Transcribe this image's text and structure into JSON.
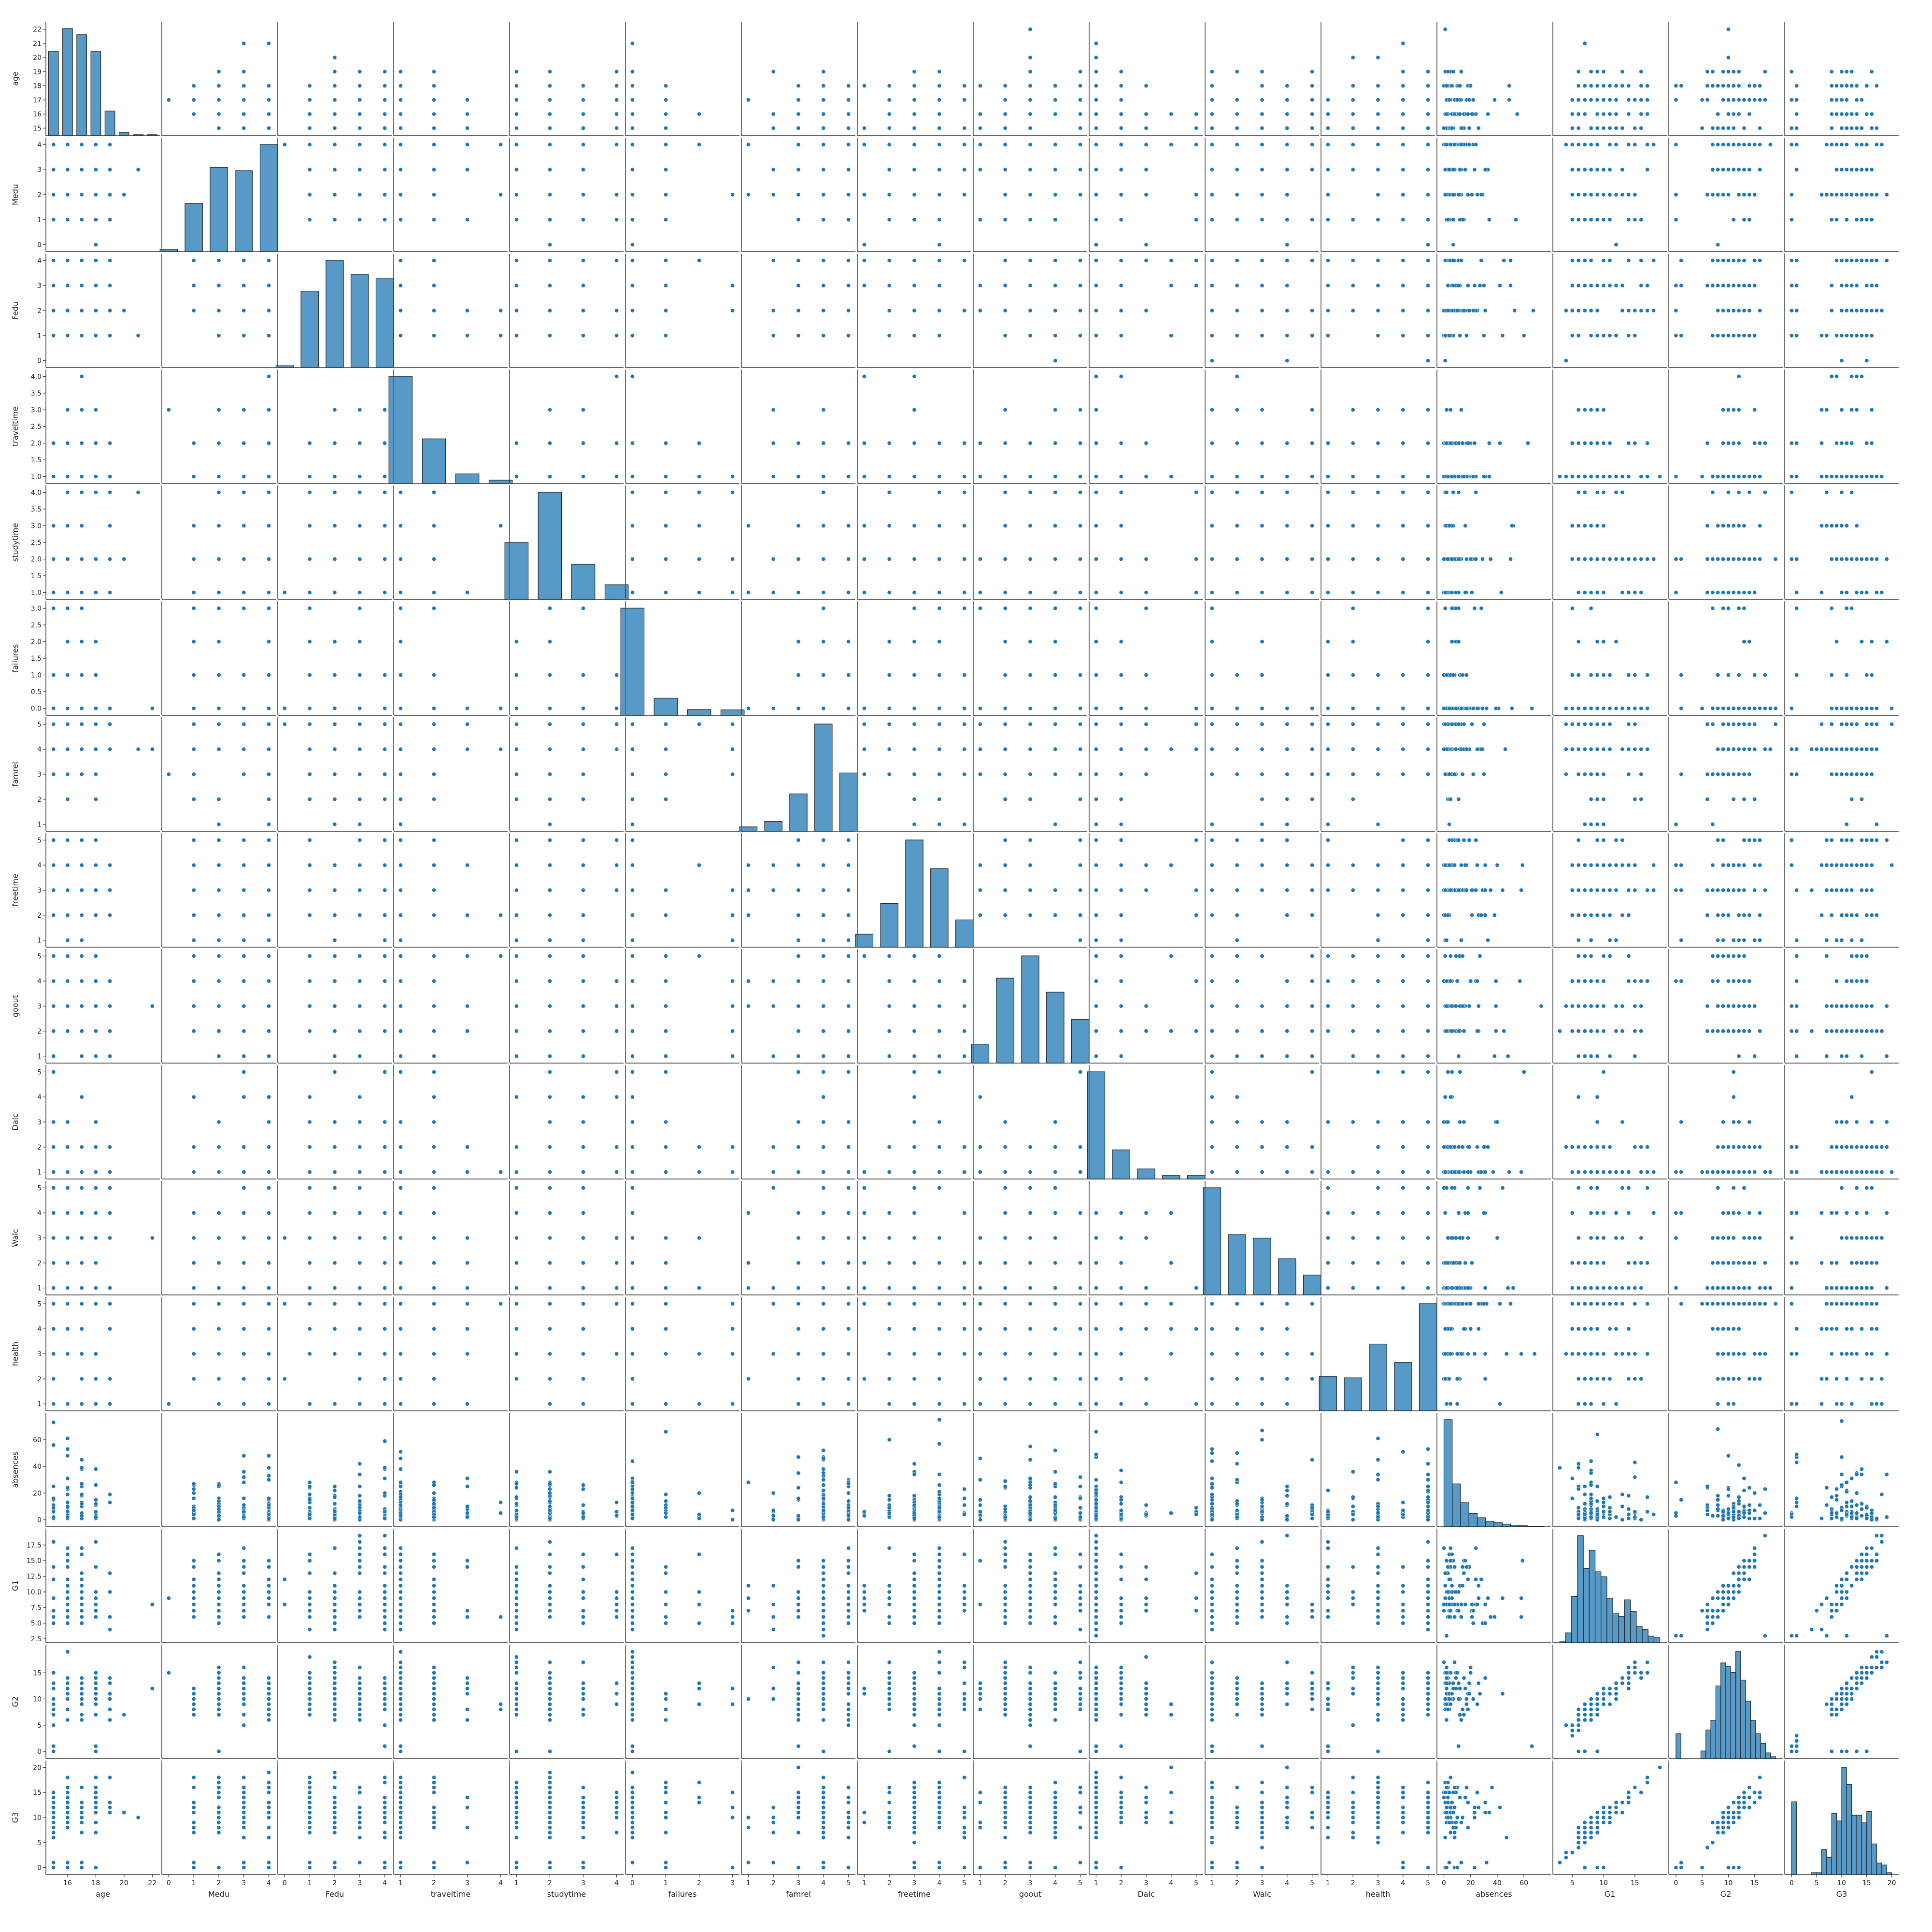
{
  "chart_data": {
    "type": "scatter",
    "subtype": "pairplot",
    "title": "",
    "marker_color": "#1f77b4",
    "hist_color": "#1f77b4",
    "grid": false,
    "legend": "none",
    "variables": [
      "age",
      "Medu",
      "Fedu",
      "traveltime",
      "studytime",
      "failures",
      "famrel",
      "freetime",
      "goout",
      "Dalc",
      "Walc",
      "health",
      "absences",
      "G1",
      "G2",
      "G3"
    ],
    "axes": {
      "age": {
        "range": [
          14.6,
          22.4
        ],
        "ticks": [
          15,
          16,
          17,
          18,
          19,
          20,
          21,
          22
        ],
        "x_ticks": [
          16,
          18,
          20,
          22
        ],
        "x_tick_labels": [
          "16",
          "18",
          "20",
          "22"
        ],
        "values": [
          15,
          16,
          17,
          18,
          19,
          20,
          21,
          22
        ],
        "hist": [
          82,
          104,
          98,
          82,
          24,
          3,
          1,
          1
        ]
      },
      "Medu": {
        "range": [
          -0.2,
          4.2
        ],
        "ticks": [
          0,
          1,
          2,
          3,
          4
        ],
        "tick_labels": [
          "0",
          "1",
          "2",
          "3",
          "4"
        ],
        "values": [
          0,
          1,
          2,
          3,
          4
        ],
        "hist": [
          3,
          59,
          103,
          99,
          131
        ]
      },
      "Fedu": {
        "range": [
          -0.2,
          4.2
        ],
        "ticks": [
          0,
          1,
          2,
          3,
          4
        ],
        "tick_labels": [
          "0",
          "1",
          "2",
          "3",
          "4"
        ],
        "values": [
          0,
          1,
          2,
          3,
          4
        ],
        "hist": [
          2,
          82,
          115,
          100,
          96
        ]
      },
      "traveltime": {
        "range": [
          0.85,
          4.15
        ],
        "ticks": [
          1.0,
          1.5,
          2.0,
          2.5,
          3.0,
          3.5,
          4.0
        ],
        "tick_labels": [
          "1.0",
          "1.5",
          "2.0",
          "2.5",
          "3.0",
          "3.5",
          "4.0"
        ],
        "x_ticks": [
          1,
          2,
          3,
          4
        ],
        "x_tick_labels": [
          "1",
          "2",
          "3",
          "4"
        ],
        "values": [
          1,
          2,
          3,
          4
        ],
        "hist": [
          257,
          107,
          23,
          8
        ]
      },
      "studytime": {
        "range": [
          0.85,
          4.15
        ],
        "ticks": [
          1.0,
          1.5,
          2.0,
          2.5,
          3.0,
          3.5,
          4.0
        ],
        "tick_labels": [
          "1.0",
          "1.5",
          "2.0",
          "2.5",
          "3.0",
          "3.5",
          "4.0"
        ],
        "x_ticks": [
          1,
          2,
          3,
          4
        ],
        "x_tick_labels": [
          "1",
          "2",
          "3",
          "4"
        ],
        "values": [
          1,
          2,
          3,
          4
        ],
        "hist": [
          105,
          198,
          65,
          27
        ]
      },
      "failures": {
        "range": [
          -0.15,
          3.15
        ],
        "ticks": [
          0.0,
          0.5,
          1.0,
          1.5,
          2.0,
          2.5,
          3.0
        ],
        "tick_labels": [
          "0.0",
          "0.5",
          "1.0",
          "1.5",
          "2.0",
          "2.5",
          "3.0"
        ],
        "x_ticks": [
          0,
          1,
          2,
          3
        ],
        "x_tick_labels": [
          "0",
          "1",
          "2",
          "3"
        ],
        "values": [
          0,
          1,
          2,
          3
        ],
        "hist": [
          312,
          50,
          17,
          16
        ]
      },
      "famrel": {
        "range": [
          0.8,
          5.2
        ],
        "ticks": [
          1,
          2,
          3,
          4,
          5
        ],
        "tick_labels": [
          "1",
          "2",
          "3",
          "4",
          "5"
        ],
        "values": [
          1,
          2,
          3,
          4,
          5
        ],
        "hist": [
          8,
          18,
          68,
          195,
          106
        ]
      },
      "freetime": {
        "range": [
          0.8,
          5.2
        ],
        "ticks": [
          1,
          2,
          3,
          4,
          5
        ],
        "tick_labels": [
          "1",
          "2",
          "3",
          "4",
          "5"
        ],
        "values": [
          1,
          2,
          3,
          4,
          5
        ],
        "hist": [
          19,
          64,
          157,
          115,
          40
        ]
      },
      "goout": {
        "range": [
          0.8,
          5.2
        ],
        "ticks": [
          1,
          2,
          3,
          4,
          5
        ],
        "tick_labels": [
          "1",
          "2",
          "3",
          "4",
          "5"
        ],
        "values": [
          1,
          2,
          3,
          4,
          5
        ],
        "hist": [
          23,
          103,
          130,
          86,
          53
        ]
      },
      "Dalc": {
        "range": [
          0.8,
          5.2
        ],
        "ticks": [
          1,
          2,
          3,
          4,
          5
        ],
        "tick_labels": [
          "1",
          "2",
          "3",
          "4",
          "5"
        ],
        "values": [
          1,
          2,
          3,
          4,
          5
        ],
        "hist": [
          276,
          75,
          26,
          9,
          9
        ]
      },
      "Walc": {
        "range": [
          0.8,
          5.2
        ],
        "ticks": [
          1,
          2,
          3,
          4,
          5
        ],
        "tick_labels": [
          "1",
          "2",
          "3",
          "4",
          "5"
        ],
        "values": [
          1,
          2,
          3,
          4,
          5
        ],
        "hist": [
          151,
          85,
          80,
          51,
          28
        ]
      },
      "health": {
        "range": [
          0.8,
          5.2
        ],
        "ticks": [
          1,
          2,
          3,
          4,
          5
        ],
        "tick_labels": [
          "1",
          "2",
          "3",
          "4",
          "5"
        ],
        "values": [
          1,
          2,
          3,
          4,
          5
        ],
        "hist": [
          47,
          45,
          91,
          66,
          146
        ]
      },
      "absences": {
        "range": [
          -3.8,
          78.8
        ],
        "ticks": [
          0,
          20,
          40,
          60
        ],
        "tick_labels": [
          "0",
          "20",
          "40",
          "60"
        ],
        "max": 75,
        "hist": [
          200,
          80,
          45,
          25,
          17,
          10,
          8,
          5,
          3,
          2,
          1,
          1
        ]
      },
      "G1": {
        "range": [
          2.2,
          19.8
        ],
        "ticks": [
          2.5,
          5.0,
          7.5,
          10.0,
          12.5,
          15.0,
          17.5
        ],
        "tick_labels": [
          "2.5",
          "5.0",
          "7.5",
          "10.0",
          "12.5",
          "15.0",
          "17.5"
        ],
        "x_ticks": [
          5,
          10,
          15
        ],
        "x_tick_labels": [
          "5",
          "10",
          "15"
        ],
        "min": 3,
        "max": 19,
        "hist": [
          1,
          6,
          28,
          65,
          45,
          56,
          43,
          40,
          27,
          18,
          16,
          26,
          19,
          10,
          8,
          4,
          3
        ]
      },
      "G2": {
        "range": [
          -1,
          20
        ],
        "ticks": [
          0,
          5,
          10,
          15
        ],
        "tick_labels": [
          "0",
          "5",
          "10",
          "15"
        ],
        "min": 0,
        "max": 19,
        "hist": [
          13,
          0,
          0,
          0,
          0,
          4,
          15,
          20,
          38,
          50,
          48,
          45,
          56,
          41,
          30,
          20,
          13,
          8,
          3,
          1
        ]
      },
      "G3": {
        "range": [
          -1,
          21
        ],
        "ticks": [
          0,
          5,
          10,
          15,
          20
        ],
        "tick_labels": [
          "0",
          "5",
          "10",
          "15",
          "20"
        ],
        "min": 0,
        "max": 20,
        "hist": [
          38,
          0,
          0,
          0,
          1,
          1,
          13,
          9,
          32,
          28,
          56,
          47,
          31,
          31,
          27,
          33,
          16,
          6,
          5,
          1
        ]
      }
    }
  }
}
